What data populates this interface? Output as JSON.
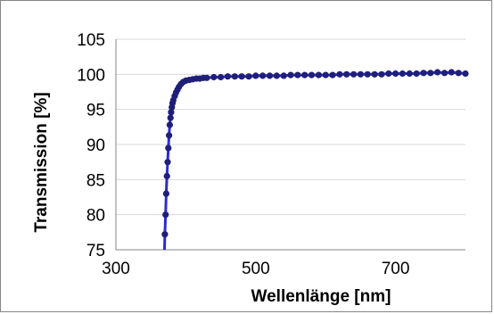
{
  "chart_data": {
    "type": "scatter",
    "title": "",
    "xlabel": "Wellenlänge [nm]",
    "ylabel": "Transmission  [%]",
    "xlim": [
      300,
      800
    ],
    "ylim": [
      75,
      105
    ],
    "x_ticks": [
      300,
      500,
      700
    ],
    "y_ticks": [
      75,
      80,
      85,
      90,
      95,
      100,
      105
    ],
    "grid": "horizontal",
    "legend": "none",
    "colors": {
      "marker": "#1f1f7a",
      "line": "#2b2bd4"
    },
    "series": [
      {
        "x": [
          370,
          371,
          372,
          373,
          374,
          375,
          376,
          377,
          378,
          379,
          380,
          381,
          382,
          384,
          386,
          388,
          390,
          393,
          396,
          400,
          405,
          410,
          415,
          420,
          425,
          430,
          440,
          450,
          460,
          470,
          480,
          490,
          500,
          510,
          520,
          530,
          540,
          550,
          560,
          570,
          580,
          590,
          600,
          610,
          620,
          630,
          640,
          650,
          660,
          670,
          680,
          690,
          700,
          710,
          720,
          730,
          740,
          750,
          760,
          770,
          780,
          790,
          800
        ],
        "y": [
          77.2,
          80.0,
          83.0,
          85.5,
          87.5,
          89.5,
          91.3,
          92.8,
          93.8,
          94.6,
          95.3,
          95.9,
          96.3,
          96.9,
          97.4,
          97.8,
          98.2,
          98.6,
          98.9,
          99.1,
          99.2,
          99.3,
          99.4,
          99.4,
          99.5,
          99.5,
          99.6,
          99.6,
          99.7,
          99.7,
          99.7,
          99.7,
          99.8,
          99.8,
          99.8,
          99.8,
          99.8,
          99.9,
          99.9,
          99.9,
          99.9,
          99.9,
          99.9,
          99.9,
          100.0,
          100.0,
          100.0,
          100.0,
          100.0,
          100.0,
          100.0,
          100.1,
          100.1,
          100.1,
          100.1,
          100.1,
          100.2,
          100.2,
          100.3,
          100.2,
          100.3,
          100.2,
          100.1
        ]
      }
    ]
  }
}
